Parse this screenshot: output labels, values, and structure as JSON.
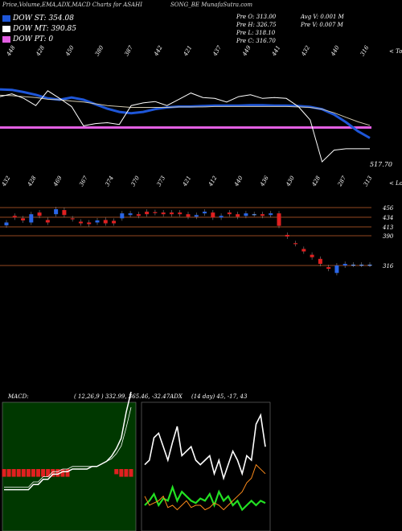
{
  "header": {
    "title_left": "Price,Volume,EMA,ADX,MACD Charts for ASAHI",
    "title_right": "SONG_BE MunafaSutra.com"
  },
  "legend": [
    {
      "label": "DOW ST: 354.08",
      "color": "#1e56d8"
    },
    {
      "label": "DOW MT: 390.85",
      "color": "#ffffff"
    },
    {
      "label": "DOW PT: 0",
      "color": "#e35fe3"
    }
  ],
  "stats": {
    "col1": [
      "Pre  O: 313.00",
      "Pre  H: 326.75",
      "Pre  L: 318.10",
      "Pre  C: 316.70"
    ],
    "col2": [
      "Avg V: 0.001 M",
      "Pre  V: 0.007 M"
    ]
  },
  "chart_data": [
    {
      "type": "line",
      "name": "price-ema-panel",
      "top_labels": [
        "448",
        "428",
        "450",
        "380",
        "387",
        "442",
        "421",
        "437",
        "449",
        "441",
        "432",
        "440",
        "316"
      ],
      "bottom_labels": [
        "432",
        "428",
        "469",
        "367",
        "374",
        "370",
        "373",
        "421",
        "412",
        "440",
        "436",
        "430",
        "428",
        "287",
        "313"
      ],
      "top_right_label": "< Top",
      "bottom_right_label": "< Lows",
      "last_price_label": "517.70",
      "pt_line_value": 0,
      "series": [
        {
          "name": "DOW ST",
          "color": "#1e56d8",
          "values": [
            448,
            447,
            442,
            436,
            428,
            425,
            430,
            425,
            415,
            405,
            398,
            395,
            398,
            404,
            408,
            410,
            410,
            411,
            412,
            412,
            412,
            413,
            413,
            412,
            412,
            411,
            409,
            404,
            392,
            375,
            355,
            340
          ]
        },
        {
          "name": "DOW MT",
          "color": "#d0c8b0",
          "values": [
            435,
            434,
            432,
            430,
            426,
            425,
            422,
            420,
            416,
            412,
            410,
            408,
            408,
            408,
            408,
            409,
            409,
            409,
            410,
            410,
            410,
            410,
            410,
            410,
            410,
            409,
            408,
            404,
            396,
            386,
            376,
            368
          ]
        },
        {
          "name": "Price",
          "color": "#ffffff",
          "values": [
            432,
            438,
            428,
            412,
            445,
            428,
            410,
            367,
            372,
            374,
            370,
            412,
            418,
            421,
            412,
            426,
            440,
            430,
            428,
            420,
            432,
            436,
            428,
            430,
            428,
            410,
            380,
            287,
            313,
            316,
            316,
            316
          ]
        }
      ]
    },
    {
      "type": "candlestick",
      "name": "candle-panel",
      "levels": [
        "456",
        "434",
        "413",
        "390",
        "316"
      ],
      "candles": [
        {
          "o": 413,
          "c": 420
        },
        {
          "o": 436,
          "c": 432
        },
        {
          "o": 430,
          "c": 425
        },
        {
          "o": 420,
          "c": 440
        },
        {
          "o": 444,
          "c": 436
        },
        {
          "o": 426,
          "c": 420
        },
        {
          "o": 440,
          "c": 452
        },
        {
          "o": 450,
          "c": 438
        },
        {
          "o": 430,
          "c": 428
        },
        {
          "o": 422,
          "c": 418
        },
        {
          "o": 420,
          "c": 416
        },
        {
          "o": 420,
          "c": 425
        },
        {
          "o": 426,
          "c": 418
        },
        {
          "o": 424,
          "c": 418
        },
        {
          "o": 430,
          "c": 442
        },
        {
          "o": 438,
          "c": 442
        },
        {
          "o": 440,
          "c": 436
        },
        {
          "o": 446,
          "c": 440
        },
        {
          "o": 445,
          "c": 443
        },
        {
          "o": 444,
          "c": 440
        },
        {
          "o": 444,
          "c": 440
        },
        {
          "o": 444,
          "c": 440
        },
        {
          "o": 440,
          "c": 434
        },
        {
          "o": 434,
          "c": 438
        },
        {
          "o": 442,
          "c": 446
        },
        {
          "o": 444,
          "c": 432
        },
        {
          "o": 432,
          "c": 436
        },
        {
          "o": 444,
          "c": 440
        },
        {
          "o": 440,
          "c": 434
        },
        {
          "o": 436,
          "c": 442
        },
        {
          "o": 440,
          "c": 440
        },
        {
          "o": 440,
          "c": 436
        },
        {
          "o": 438,
          "c": 442
        },
        {
          "o": 442,
          "c": 412
        },
        {
          "o": 390,
          "c": 386
        },
        {
          "o": 370,
          "c": 368
        },
        {
          "o": 356,
          "c": 350
        },
        {
          "o": 342,
          "c": 336
        },
        {
          "o": 332,
          "c": 320
        },
        {
          "o": 312,
          "c": 308
        },
        {
          "o": 298,
          "c": 316
        },
        {
          "o": 316,
          "c": 320
        },
        {
          "o": 318,
          "c": 318
        },
        {
          "o": 318,
          "c": 318
        },
        {
          "o": 318,
          "c": 318
        }
      ]
    },
    {
      "type": "line",
      "name": "macd-panel",
      "label": "MACD:",
      "params": "( 12,26,9 ) 332.99, 365.46, -32.47ADX",
      "series": [
        {
          "name": "MACD",
          "color": "#ffffff",
          "values": [
            -8,
            -8,
            -8,
            -8,
            -8,
            -8,
            -6,
            -6,
            -4,
            -4,
            -2,
            -2,
            -1,
            -1,
            0,
            0,
            0,
            0,
            1,
            1,
            2,
            3,
            5,
            8,
            12,
            22,
            30
          ]
        },
        {
          "name": "Signal",
          "color": "#ffffff",
          "values": [
            -7,
            -7,
            -7,
            -7,
            -7,
            -7,
            -5,
            -5,
            -3,
            -3,
            -1,
            -1,
            0,
            0,
            1,
            1,
            1,
            1,
            1,
            1,
            2,
            3,
            4,
            6,
            9,
            16,
            24
          ]
        }
      ],
      "hist": [
        -3,
        -3,
        -3,
        -3,
        -3,
        -3,
        -3,
        -3,
        -3,
        -3,
        -3,
        -3,
        -3,
        -3,
        0,
        0,
        0,
        0,
        0,
        0,
        0,
        0,
        0,
        -2,
        -3,
        -3,
        -3
      ]
    },
    {
      "type": "line",
      "name": "adx-panel",
      "params": "(14  day) 45, -17, 43",
      "series": [
        {
          "name": "ADX",
          "color": "#ffffff",
          "values": [
            28,
            30,
            40,
            42,
            36,
            30,
            38,
            45,
            32,
            34,
            36,
            30,
            28,
            30,
            32,
            24,
            30,
            22,
            28,
            34,
            30,
            24,
            32,
            30,
            46,
            50,
            36
          ]
        },
        {
          "name": "DI+",
          "color": "#22e022",
          "values": [
            10,
            12,
            15,
            10,
            13,
            12,
            18,
            12,
            16,
            14,
            12,
            11,
            13,
            12,
            15,
            10,
            16,
            12,
            14,
            10,
            12,
            8,
            10,
            12,
            10,
            12,
            11
          ]
        },
        {
          "name": "DI-",
          "color": "#ff8c1a",
          "values": [
            14,
            10,
            11,
            12,
            14,
            9,
            10,
            8,
            10,
            12,
            9,
            10,
            10,
            8,
            9,
            11,
            10,
            8,
            10,
            12,
            14,
            16,
            20,
            22,
            28,
            26,
            24
          ]
        }
      ]
    }
  ]
}
